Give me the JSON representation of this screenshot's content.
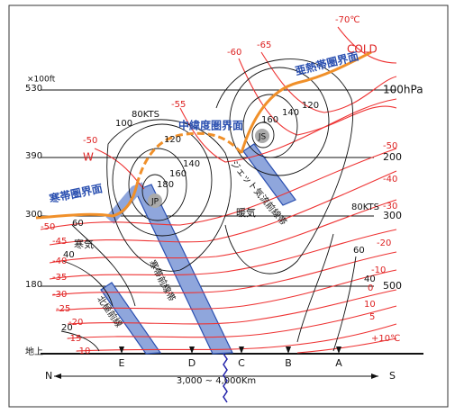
{
  "left_axis": {
    "unit": "×100ft",
    "labels": [
      "530",
      "390",
      "300",
      "180",
      "地上"
    ]
  },
  "right_axis": {
    "labels": [
      "100hPa",
      "200",
      "300",
      "500"
    ]
  },
  "stations": [
    "E",
    "D",
    "C",
    "B",
    "A"
  ],
  "direction": {
    "north": "N",
    "south": "S",
    "distance": "3,000 ~ 4,000Km"
  },
  "tropopauses": [
    "寒帯圏界面",
    "中緯度圏界面",
    "亜熱帯圏界面"
  ],
  "air_masses": [
    "寒気",
    "暖気",
    "COLD",
    "W"
  ],
  "jets": [
    "JP",
    "JS"
  ],
  "fronts": [
    "北極前線",
    "寒帯前線帯",
    "ジェット気流前線帯"
  ],
  "isotach_labels": [
    "80KTS",
    "100",
    "120",
    "140",
    "160",
    "180",
    "160",
    "140",
    "120",
    "80KTS",
    "60",
    "40",
    "60",
    "40",
    "20"
  ],
  "isotherm_labels": [
    "-70℃",
    "-65",
    "-60",
    "-55",
    "-50",
    "-50",
    "-45",
    "-40",
    "-35",
    "-30",
    "-25",
    "-20",
    "-15",
    "-10",
    "-50",
    "-40",
    "-30",
    "-20",
    "-10",
    "0",
    "10",
    "5",
    "+10℃"
  ]
}
